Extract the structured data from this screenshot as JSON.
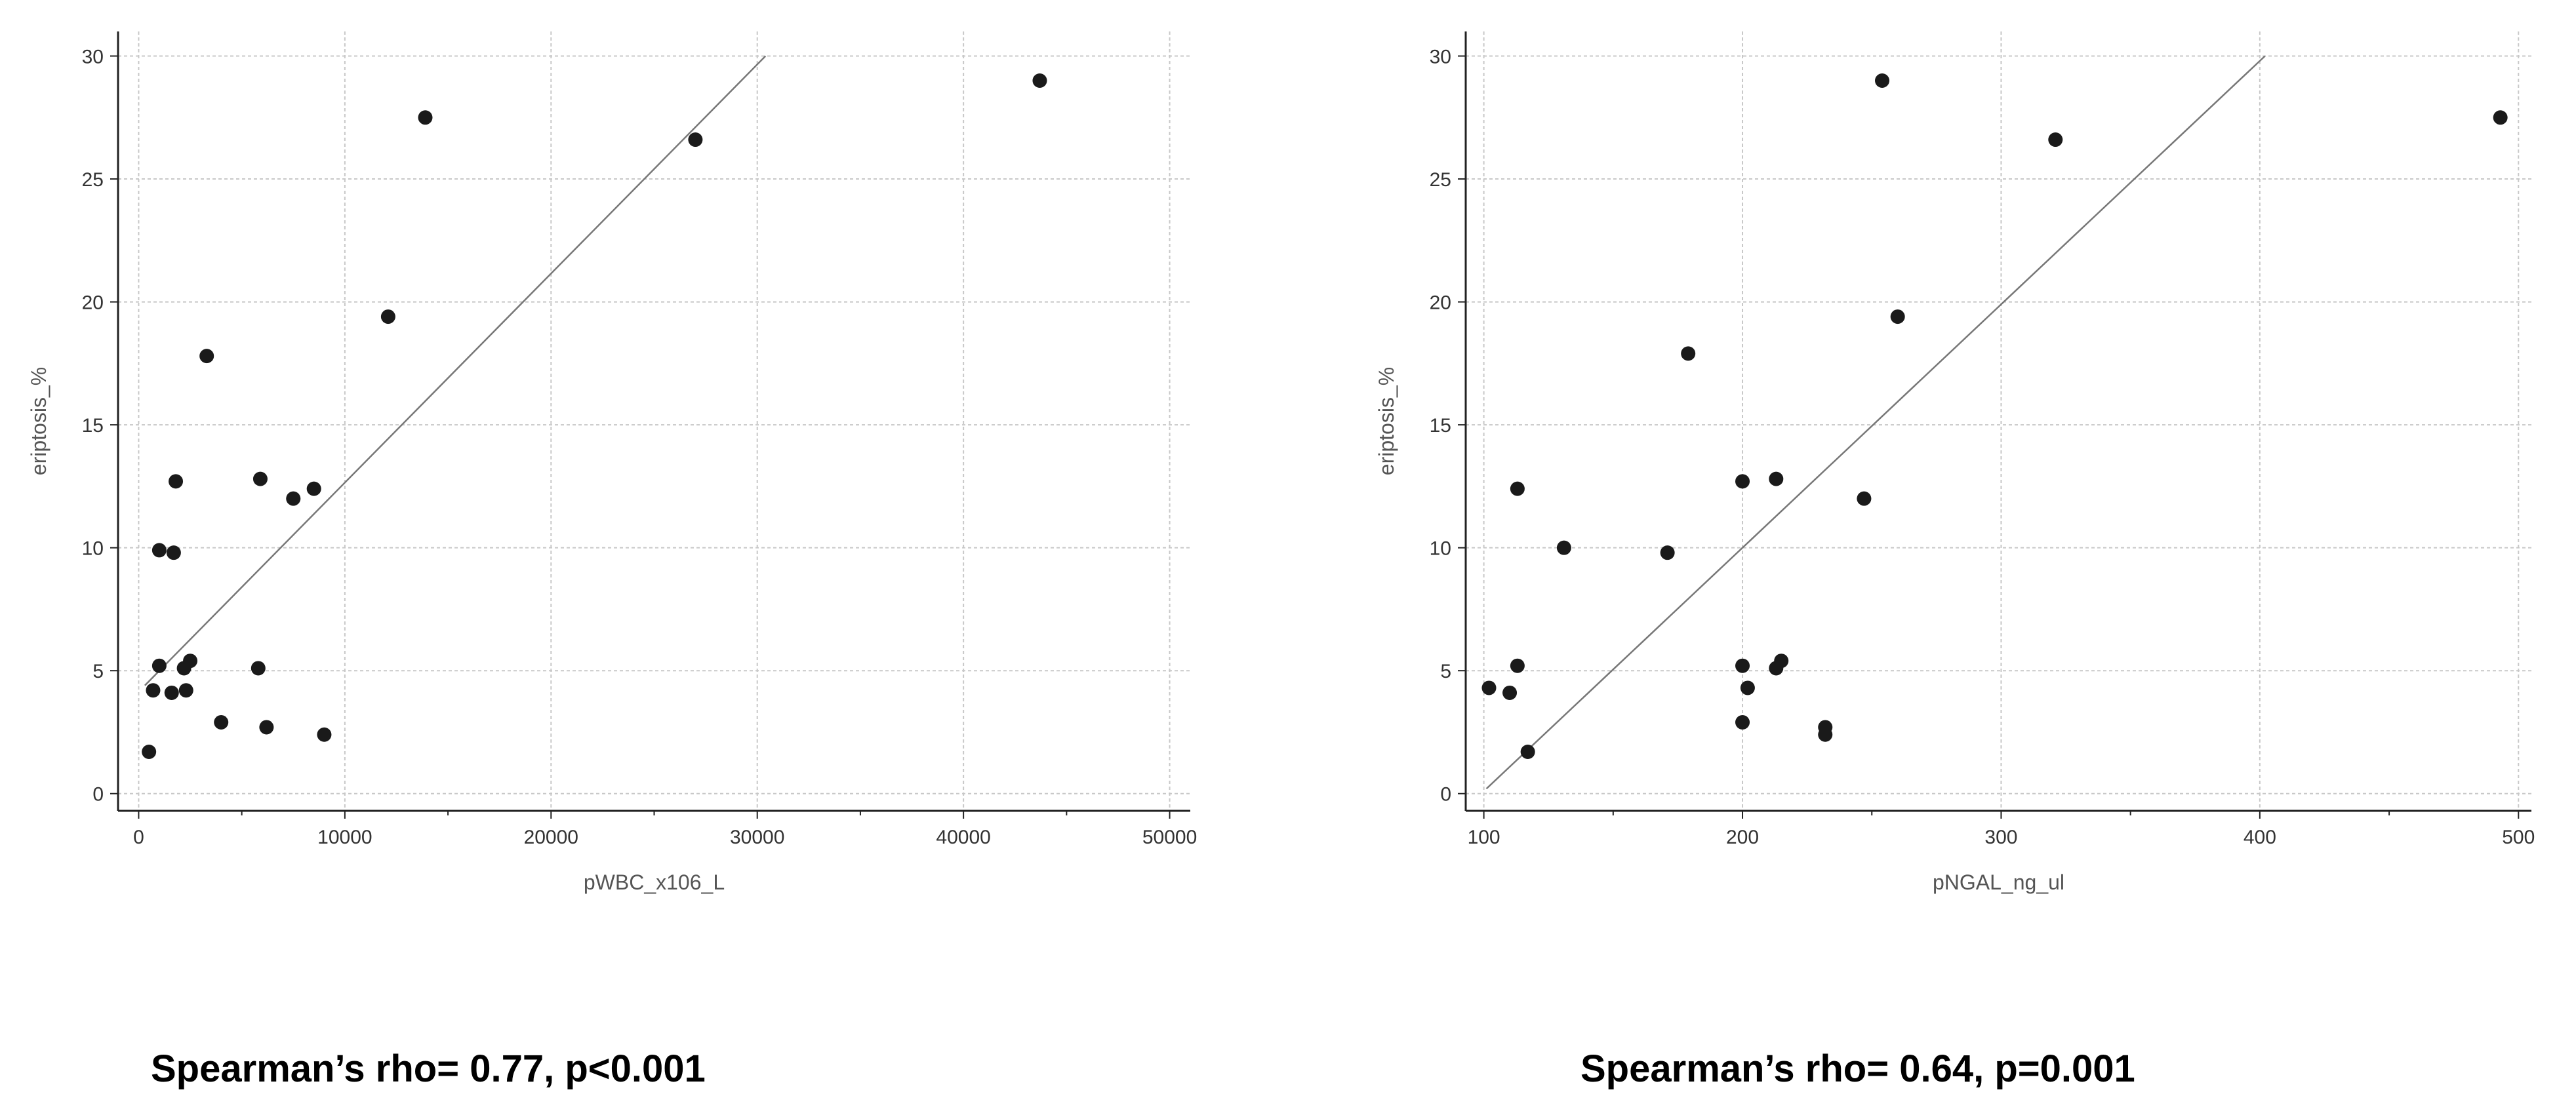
{
  "chart_data": [
    {
      "type": "scatter",
      "xlabel": "pWBC_x106_L",
      "ylabel": "eriptosis_%",
      "xlim": [
        -1000,
        51000
      ],
      "ylim": [
        -0.7,
        31
      ],
      "xticks": [
        0,
        10000,
        20000,
        30000,
        40000,
        50000
      ],
      "yticks": [
        0,
        5,
        10,
        15,
        20,
        25,
        30
      ],
      "grid": true,
      "fit_line": {
        "x": [
          300,
          30400
        ],
        "y": [
          4.4,
          30
        ]
      },
      "points": [
        {
          "x": 500,
          "y": 1.7
        },
        {
          "x": 700,
          "y": 4.2
        },
        {
          "x": 1000,
          "y": 5.2
        },
        {
          "x": 1000,
          "y": 9.9
        },
        {
          "x": 1600,
          "y": 4.1
        },
        {
          "x": 1700,
          "y": 9.8
        },
        {
          "x": 1800,
          "y": 12.7
        },
        {
          "x": 2200,
          "y": 5.1
        },
        {
          "x": 2300,
          "y": 4.2
        },
        {
          "x": 2500,
          "y": 5.4
        },
        {
          "x": 3300,
          "y": 17.8
        },
        {
          "x": 4000,
          "y": 2.9
        },
        {
          "x": 5800,
          "y": 5.1
        },
        {
          "x": 5900,
          "y": 12.8
        },
        {
          "x": 6200,
          "y": 2.7
        },
        {
          "x": 7500,
          "y": 12.0
        },
        {
          "x": 8500,
          "y": 12.4
        },
        {
          "x": 9000,
          "y": 2.4
        },
        {
          "x": 12100,
          "y": 19.4
        },
        {
          "x": 13900,
          "y": 27.5
        },
        {
          "x": 27000,
          "y": 26.6
        },
        {
          "x": 43700,
          "y": 29.0
        }
      ]
    },
    {
      "type": "scatter",
      "xlabel": "pNGAL_ng_ul",
      "ylabel": "eriptosis_%",
      "xlim": [
        93,
        505
      ],
      "ylim": [
        -0.7,
        31
      ],
      "xticks": [
        100,
        200,
        300,
        400,
        500
      ],
      "yticks": [
        0,
        5,
        10,
        15,
        20,
        25,
        30
      ],
      "grid": true,
      "fit_line": {
        "x": [
          101,
          402
        ],
        "y": [
          0.2,
          30
        ]
      },
      "points": [
        {
          "x": 102,
          "y": 4.3
        },
        {
          "x": 110,
          "y": 4.1
        },
        {
          "x": 113,
          "y": 5.2
        },
        {
          "x": 113,
          "y": 12.4
        },
        {
          "x": 117,
          "y": 1.7
        },
        {
          "x": 131,
          "y": 10.0
        },
        {
          "x": 171,
          "y": 9.8
        },
        {
          "x": 179,
          "y": 17.9
        },
        {
          "x": 200,
          "y": 2.9
        },
        {
          "x": 200,
          "y": 5.2
        },
        {
          "x": 200,
          "y": 12.7
        },
        {
          "x": 202,
          "y": 4.3
        },
        {
          "x": 213,
          "y": 5.1
        },
        {
          "x": 213,
          "y": 12.8
        },
        {
          "x": 215,
          "y": 5.4
        },
        {
          "x": 232,
          "y": 2.7
        },
        {
          "x": 232,
          "y": 2.4
        },
        {
          "x": 247,
          "y": 12.0
        },
        {
          "x": 254,
          "y": 29.0
        },
        {
          "x": 260,
          "y": 19.4
        },
        {
          "x": 321,
          "y": 26.6
        },
        {
          "x": 493,
          "y": 27.5
        }
      ]
    }
  ],
  "annotations": [
    {
      "text": "Spearman’s rho= 0.77, p<0.001"
    },
    {
      "text": "Spearman’s rho= 0.64, p=0.001"
    }
  ]
}
